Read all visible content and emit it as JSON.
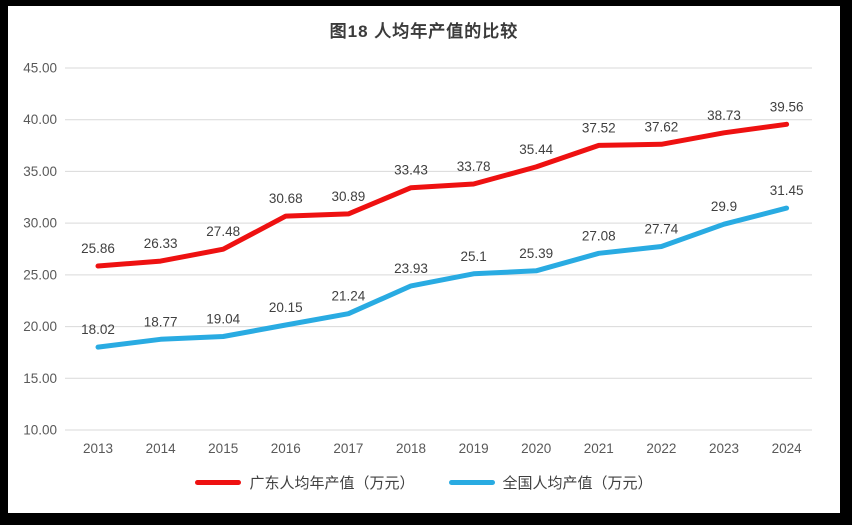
{
  "chart_data": {
    "type": "line",
    "title": "图18 人均年产值的比较",
    "categories": [
      "2013",
      "2014",
      "2015",
      "2016",
      "2017",
      "2018",
      "2019",
      "2020",
      "2021",
      "2022",
      "2023",
      "2024"
    ],
    "series": [
      {
        "name": "广东人均年产值（万元）",
        "color": "#ee1111",
        "values": [
          25.86,
          26.33,
          27.48,
          30.68,
          30.89,
          33.43,
          33.78,
          35.44,
          37.52,
          37.62,
          38.73,
          39.56
        ],
        "labels": [
          "25.86",
          "26.33",
          "27.48",
          "30.68",
          "30.89",
          "33.43",
          "33.78",
          "35.44",
          "37.52",
          "37.62",
          "38.73",
          "39.56"
        ]
      },
      {
        "name": "全国人均产值（万元）",
        "color": "#29abe2",
        "values": [
          18.02,
          18.77,
          19.04,
          20.15,
          21.24,
          23.93,
          25.1,
          25.39,
          27.08,
          27.74,
          29.9,
          31.45
        ],
        "labels": [
          "18.02",
          "18.77",
          "19.04",
          "20.15",
          "21.24",
          "23.93",
          "25.1",
          "25.39",
          "27.08",
          "27.74",
          "29.9",
          "31.45"
        ]
      }
    ],
    "ylim": [
      10,
      45
    ],
    "ytick_step": 5,
    "ytick_labels": [
      "10.00",
      "15.00",
      "20.00",
      "25.00",
      "30.00",
      "35.00",
      "40.00",
      "45.00"
    ],
    "grid": true,
    "legend_position": "bottom",
    "data_labels": true,
    "colors": {
      "gridline": "#d9d9d9",
      "axis_labels": "#595959",
      "data_labels": "#404040",
      "title": "#3b3b3b"
    }
  }
}
